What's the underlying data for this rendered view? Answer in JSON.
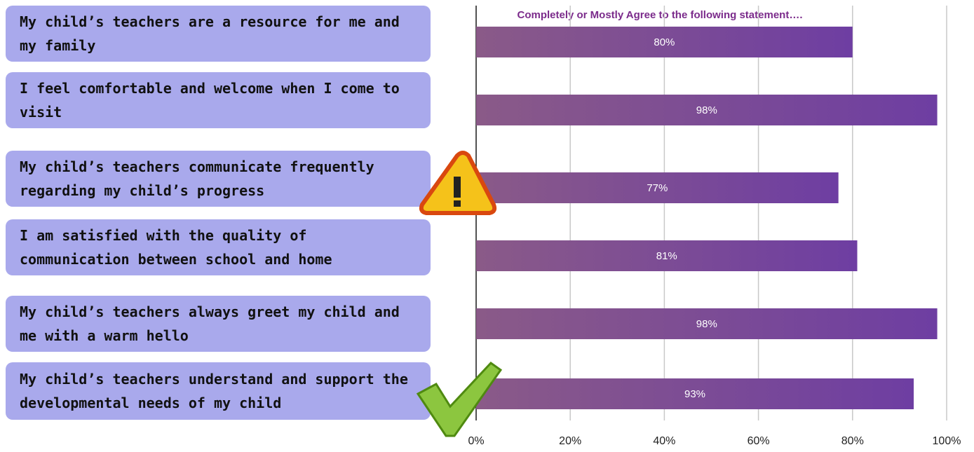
{
  "chart_data": {
    "type": "bar",
    "orientation": "horizontal",
    "title": "Completely or Mostly Agree to the following statement….",
    "categories": [
      "My child’s teachers are a resource for me and my family",
      "I feel comfortable and welcome when I come to visit",
      "My child’s teachers communicate frequently regarding my child’s progress",
      "I am satisfied with the quality of communication between school and home",
      "My child’s teachers always greet my child and me with a warm hello",
      "My child’s teachers understand and support the developmental needs of my child"
    ],
    "values": [
      80,
      98,
      77,
      81,
      98,
      93
    ],
    "value_labels": [
      "80%",
      "98%",
      "77%",
      "81%",
      "98%",
      "93%"
    ],
    "color": "#7a4a98",
    "xlim": [
      0,
      100
    ],
    "xticks": [
      {
        "value": 0,
        "label": "0%"
      },
      {
        "value": 20,
        "label": "20%"
      },
      {
        "value": 40,
        "label": "40%"
      },
      {
        "value": 60,
        "label": "60%"
      },
      {
        "value": 80,
        "label": "80%"
      },
      {
        "value": 100,
        "label": "100%"
      }
    ],
    "grid": true
  }
}
